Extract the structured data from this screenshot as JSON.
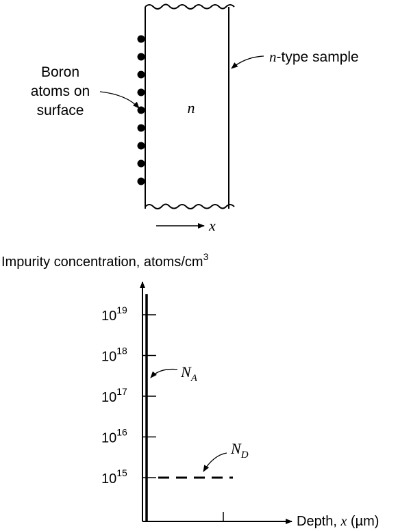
{
  "diagram": {
    "boron_label_line1": "Boron",
    "boron_label_line2": "atoms on",
    "boron_label_line3": "surface",
    "sample_label_italic": "n",
    "sample_label_rest": "-type sample",
    "sample_inner_label": "n",
    "x_arrow_label": "x",
    "boron_atom_count": 9
  },
  "chart": {
    "y_title_text": "Impurity concentration, atoms/cm",
    "y_title_sup": "3",
    "x_title_text": "Depth, ",
    "x_title_var": "x",
    "x_title_unit": " (µm)",
    "tick_base": "10",
    "tick_exponents": [
      "19",
      "18",
      "17",
      "16",
      "15"
    ],
    "na_label": "N",
    "na_sub": "A",
    "nd_label": "N",
    "nd_sub": "D"
  },
  "chart_data": {
    "type": "line",
    "title": "",
    "ylabel": "Impurity concentration, atoms/cm3",
    "xlabel": "Depth, x (µm)",
    "y_scale": "log",
    "y_ticks": [
      1000000000000000.0,
      1e+16,
      1e+17,
      1e+18,
      1e+19
    ],
    "series": [
      {
        "name": "NA",
        "description": "spike at surface (x = 0)",
        "x": [
          0,
          0
        ],
        "y": [
          100000000000000.0,
          1e+20
        ]
      },
      {
        "name": "ND",
        "style": "dashed",
        "x": [
          0,
          1
        ],
        "y": [
          1000000000000000.0,
          1000000000000000.0
        ]
      }
    ]
  }
}
